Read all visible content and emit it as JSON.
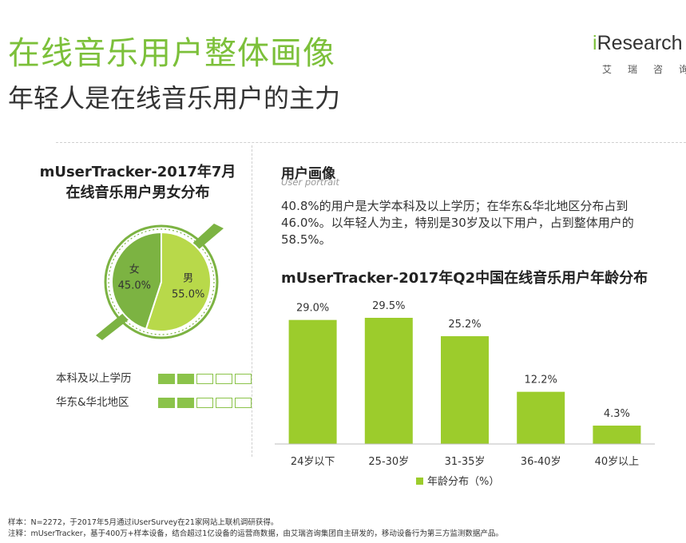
{
  "header": {
    "title": "在线音乐用户整体画像",
    "subtitle": "年轻人是在线音乐用户的主力"
  },
  "logo": {
    "prefix": "i",
    "name": "Research",
    "cn": "艾瑞咨询"
  },
  "pie": {
    "title_line1": "mUserTracker-2017年7月",
    "title_line2": "在线音乐用户男女分布",
    "chart_data": {
      "type": "pie",
      "categories": [
        "女",
        "男"
      ],
      "values": [
        45.0,
        55.0
      ],
      "labels": [
        "45.0%",
        "55.0%"
      ],
      "colors": [
        "#7cb342",
        "#b8d94a"
      ]
    }
  },
  "attributes": [
    {
      "label": "本科及以上学历",
      "filled": 2,
      "total": 5
    },
    {
      "label": "华东&华北地区",
      "filled": 2,
      "total": 5
    }
  ],
  "portrait": {
    "title": "用户画像",
    "subtitle": "User portrait",
    "description": "40.8%的用户是大学本科及以上学历；在华东&华北地区分布占到46.0%。以年轻人为主，特别是30岁及以下用户，占到整体用户的58.5%。"
  },
  "bar": {
    "title": "mUserTracker-2017年Q2中国在线音乐用户年龄分布",
    "chart_data": {
      "type": "bar",
      "categories": [
        "24岁以下",
        "25-30岁",
        "31-35岁",
        "36-40岁",
        "40岁以上"
      ],
      "series": [
        {
          "name": "年龄分布（%）",
          "values": [
            29.0,
            29.5,
            25.2,
            12.2,
            4.3
          ]
        }
      ],
      "data_labels": [
        "29.0%",
        "29.5%",
        "25.2%",
        "12.2%",
        "4.3%"
      ],
      "ylim": [
        0,
        29.5
      ],
      "legend_position": "bottom",
      "color": "#9ccc2c"
    }
  },
  "footnotes": {
    "sample": "样本：N=2272，于2017年5月通过iUserSurvey在21家网站上联机调研获得。",
    "note": "注释：mUserTracker，基于400万+样本设备，结合超过1亿设备的运营商数据，由艾瑞咨询集团自主研发的，移动设备行为第三方监测数据产品。"
  }
}
